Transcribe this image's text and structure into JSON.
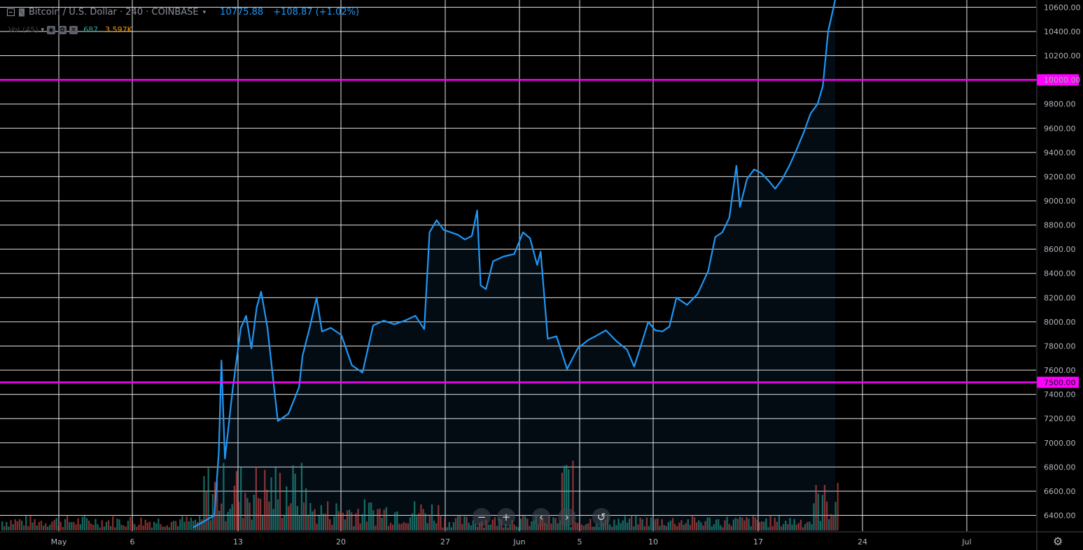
{
  "header": {
    "title": "Bitcoin / U.S. Dollar · 240 · COINBASE",
    "price": "10775.88",
    "change": "+108.87 (+1.02%)"
  },
  "volume_legend": {
    "label": "Vol (45)",
    "value_a": "687",
    "value_b": "3.597K"
  },
  "nav_buttons": [
    {
      "name": "zoom-out",
      "glyph": "−"
    },
    {
      "name": "zoom-in",
      "glyph": "+"
    },
    {
      "name": "scroll-left",
      "glyph": "‹"
    },
    {
      "name": "scroll-right",
      "glyph": "›"
    },
    {
      "name": "reset-chart",
      "glyph": "↺"
    }
  ],
  "settings_icon": "gear-icon",
  "colors": {
    "background": "#000000",
    "grid": "#e6e6e6",
    "line": "#2196f3",
    "level": "#ff00ff",
    "vol_up": "#26a69a",
    "vol_down": "#ef5350"
  },
  "chart_data": {
    "type": "line",
    "grid": true,
    "x_axis": {
      "ticks": [
        "May",
        "6",
        "13",
        "20",
        "27",
        "Jun",
        "5",
        "10",
        "17",
        "24",
        "Jul"
      ]
    },
    "y_axis": {
      "ticks": [
        "6400.00",
        "6600.00",
        "6800.00",
        "7000.00",
        "7200.00",
        "7400.00",
        "7600.00",
        "7800.00",
        "8000.00",
        "8200.00",
        "8400.00",
        "8600.00",
        "8800.00",
        "9000.00",
        "9200.00",
        "9400.00",
        "9600.00",
        "9800.00",
        "10000.00",
        "10200.00",
        "10400.00",
        "10600.00"
      ],
      "range": [
        6270,
        10660
      ]
    },
    "horizontal_levels": [
      {
        "value": 10000,
        "label": "10000.00"
      },
      {
        "value": 7500,
        "label": "7500.00"
      }
    ],
    "series": [
      {
        "values": [
          [
            0,
            6300
          ],
          [
            12,
            6400
          ],
          [
            14.5,
            6920
          ],
          [
            16,
            7680
          ],
          [
            18,
            6870
          ],
          [
            22.5,
            7460
          ],
          [
            27,
            7950
          ],
          [
            30,
            8050
          ],
          [
            33,
            7780
          ],
          [
            36,
            8120
          ],
          [
            38.5,
            8250
          ],
          [
            42,
            7960
          ],
          [
            48,
            7180
          ],
          [
            54,
            7240
          ],
          [
            60,
            7460
          ],
          [
            62,
            7720
          ],
          [
            66,
            7950
          ],
          [
            70,
            8200
          ],
          [
            73,
            7920
          ],
          [
            78,
            7950
          ],
          [
            84,
            7890
          ],
          [
            90,
            7640
          ],
          [
            96,
            7580
          ],
          [
            102,
            7970
          ],
          [
            108,
            8010
          ],
          [
            114,
            7980
          ],
          [
            120,
            8010
          ],
          [
            126,
            8050
          ],
          [
            131,
            7940
          ],
          [
            134,
            8740
          ],
          [
            138,
            8840
          ],
          [
            142,
            8760
          ],
          [
            150,
            8720
          ],
          [
            154,
            8680
          ],
          [
            158,
            8710
          ],
          [
            161,
            8920
          ],
          [
            163,
            8300
          ],
          [
            166,
            8270
          ],
          [
            170,
            8500
          ],
          [
            176,
            8540
          ],
          [
            182,
            8560
          ],
          [
            187,
            8740
          ],
          [
            191,
            8690
          ],
          [
            195,
            8470
          ],
          [
            197,
            8580
          ],
          [
            201,
            7860
          ],
          [
            206,
            7880
          ],
          [
            212,
            7610
          ],
          [
            218,
            7780
          ],
          [
            224,
            7850
          ],
          [
            228,
            7880
          ],
          [
            234,
            7930
          ],
          [
            240,
            7840
          ],
          [
            246,
            7770
          ],
          [
            250,
            7630
          ],
          [
            254,
            7810
          ],
          [
            258,
            8000
          ],
          [
            262,
            7930
          ],
          [
            266,
            7920
          ],
          [
            270,
            7960
          ],
          [
            274,
            8200
          ],
          [
            280,
            8140
          ],
          [
            286,
            8230
          ],
          [
            292,
            8420
          ],
          [
            296,
            8700
          ],
          [
            300,
            8740
          ],
          [
            304,
            8860
          ],
          [
            308,
            9290
          ],
          [
            310,
            8950
          ],
          [
            314,
            9180
          ],
          [
            318,
            9260
          ],
          [
            322,
            9230
          ],
          [
            326,
            9170
          ],
          [
            330,
            9100
          ],
          [
            334,
            9180
          ],
          [
            338,
            9290
          ],
          [
            342,
            9420
          ],
          [
            346,
            9560
          ],
          [
            350,
            9720
          ],
          [
            354,
            9800
          ],
          [
            357,
            9950
          ],
          [
            360,
            10400
          ],
          [
            364,
            10660
          ]
        ]
      }
    ],
    "volume": {
      "label": "Vol (45)",
      "up_color": "#26a69a",
      "down_color": "#ef5350"
    }
  }
}
